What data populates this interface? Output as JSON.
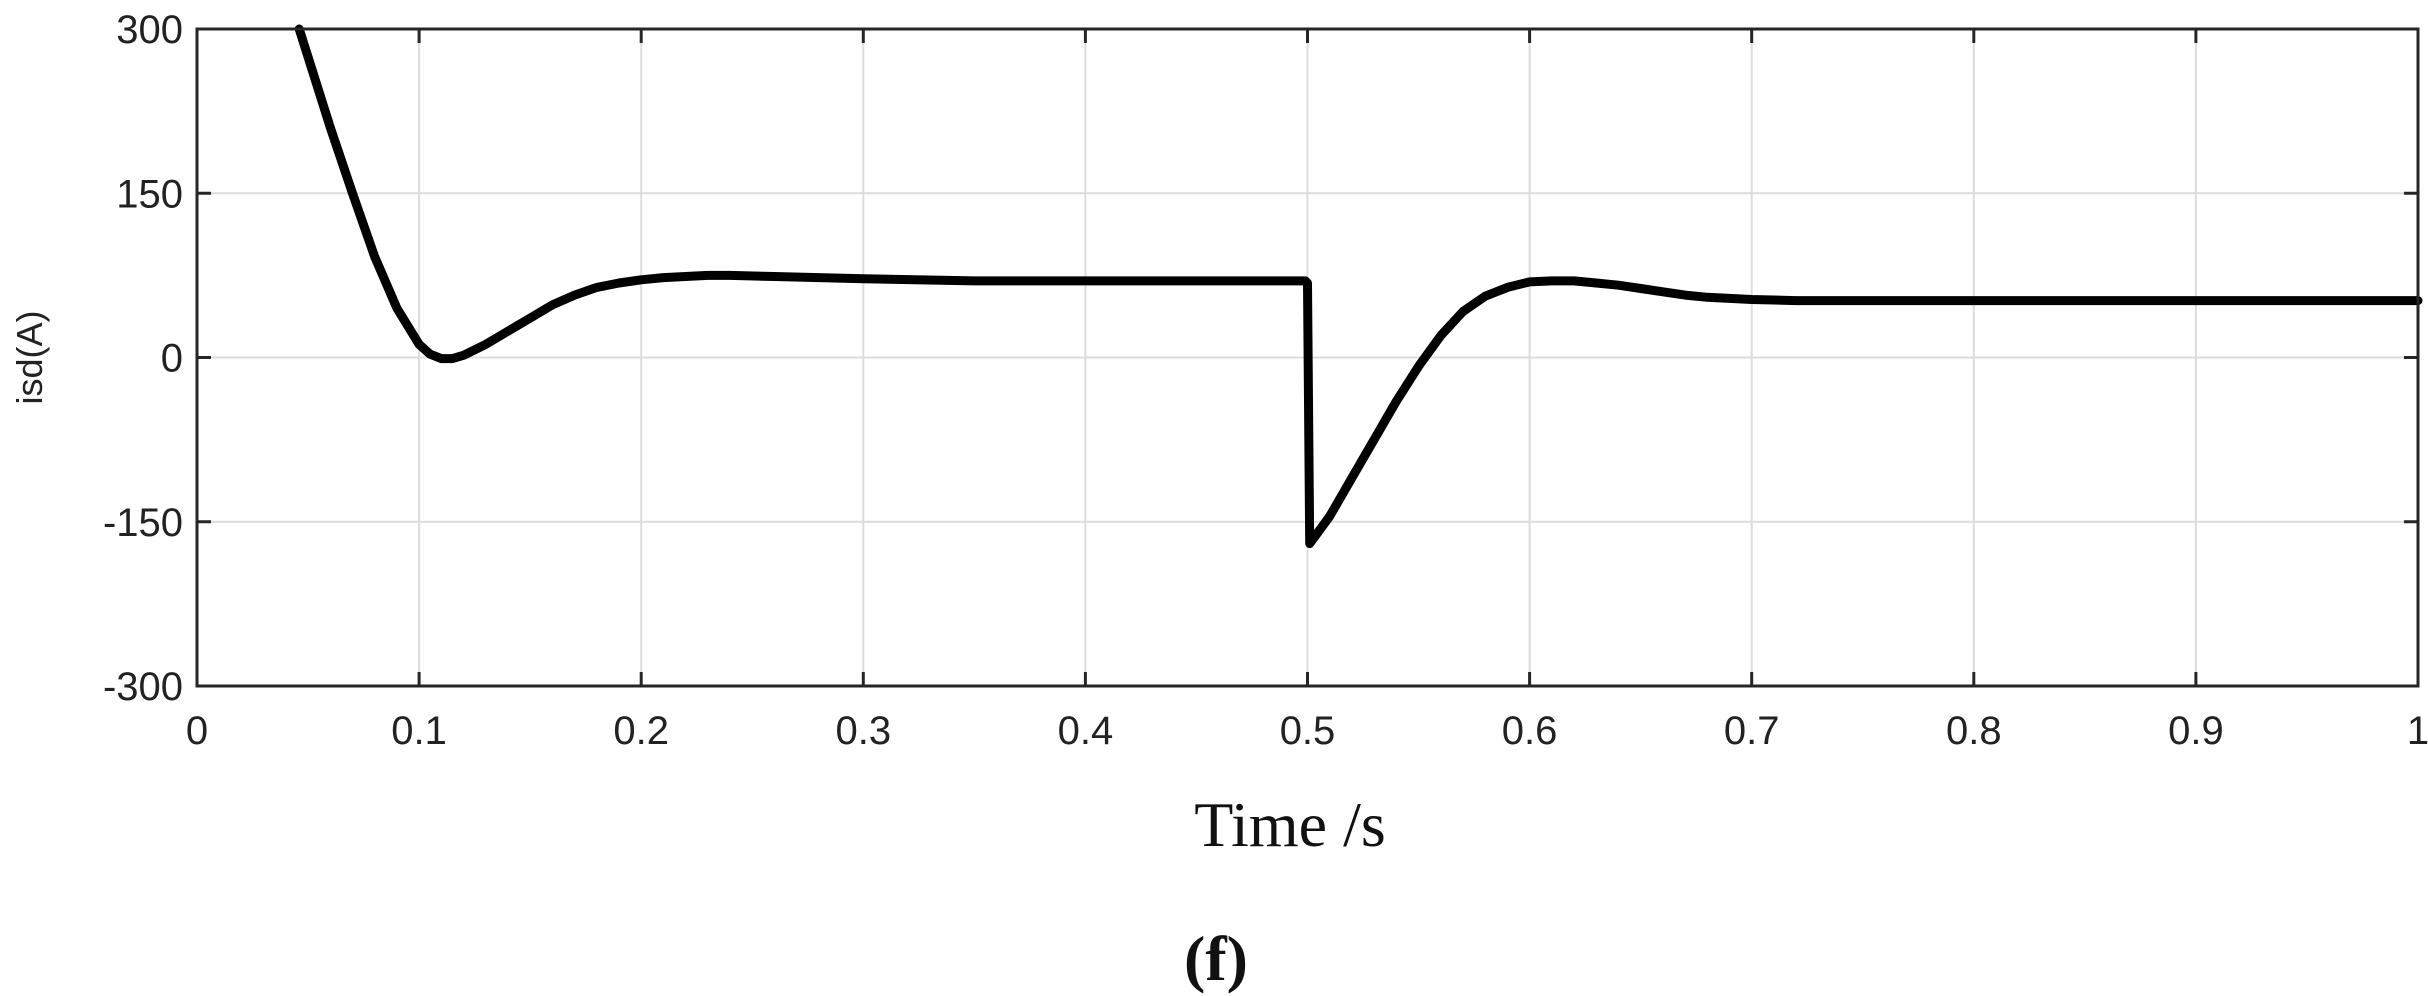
{
  "chart_data": {
    "type": "line",
    "title": "",
    "xlabel": "Time /s",
    "ylabel": "isd(A)",
    "panel_label": "(f)",
    "xlim": [
      0,
      1
    ],
    "ylim": [
      -300,
      300
    ],
    "xticks": [
      0,
      0.1,
      0.2,
      0.3,
      0.4,
      0.5,
      0.6,
      0.7,
      0.8,
      0.9,
      1
    ],
    "xtick_labels": [
      "0",
      "0.1",
      "0.2",
      "0.3",
      "0.4",
      "0.5",
      "0.6",
      "0.7",
      "0.8",
      "0.9",
      "1"
    ],
    "yticks": [
      300,
      150,
      0,
      -150,
      -300
    ],
    "ytick_labels": [
      "300",
      "150",
      "0",
      "-150",
      "-300"
    ],
    "grid": true,
    "legend": "none",
    "series": [
      {
        "color": "#000000",
        "x": [
          0.046,
          0.06,
          0.07,
          0.08,
          0.09,
          0.1,
          0.105,
          0.11,
          0.115,
          0.12,
          0.13,
          0.14,
          0.15,
          0.16,
          0.17,
          0.18,
          0.19,
          0.2,
          0.21,
          0.22,
          0.23,
          0.24,
          0.26,
          0.28,
          0.3,
          0.35,
          0.4,
          0.45,
          0.499,
          0.5,
          0.501,
          0.51,
          0.52,
          0.53,
          0.54,
          0.55,
          0.56,
          0.57,
          0.58,
          0.59,
          0.6,
          0.61,
          0.62,
          0.63,
          0.64,
          0.65,
          0.66,
          0.67,
          0.68,
          0.7,
          0.72,
          0.75,
          0.8,
          0.85,
          0.9,
          0.95,
          1.0
        ],
        "y": [
          300,
          210,
          150,
          92,
          45,
          12,
          3,
          -1,
          -1,
          2,
          12,
          24,
          36,
          48,
          57,
          64,
          68,
          71,
          73,
          74,
          75,
          75,
          74,
          73,
          72,
          70,
          70,
          70,
          70,
          68,
          -170,
          -145,
          -110,
          -75,
          -40,
          -8,
          20,
          42,
          56,
          64,
          69,
          70,
          70,
          68,
          66,
          63,
          60,
          57,
          55,
          53,
          52,
          52,
          52,
          52,
          52,
          52,
          52
        ]
      }
    ]
  }
}
